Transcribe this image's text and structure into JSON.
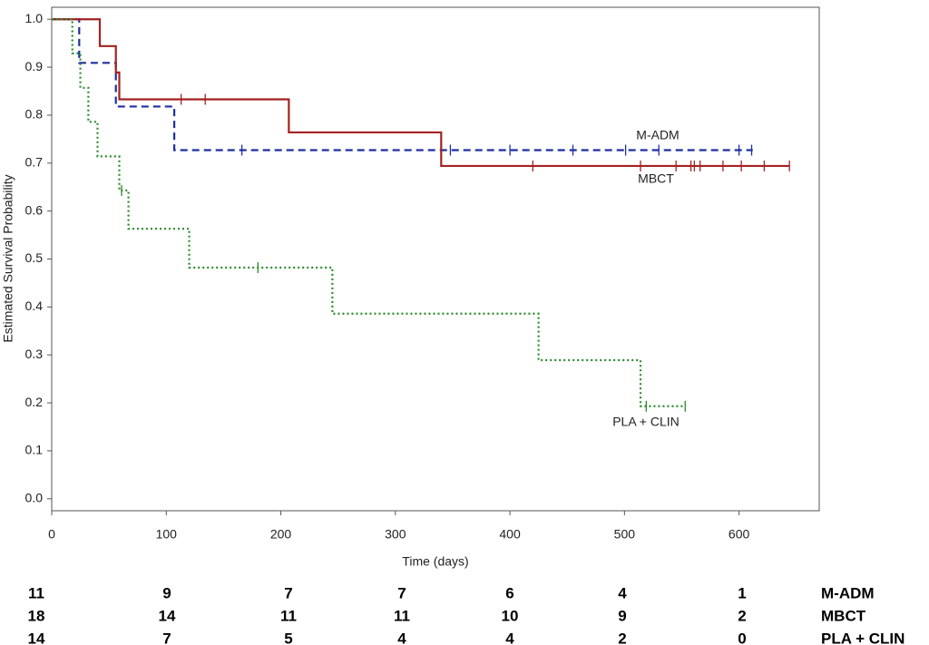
{
  "chart_data": {
    "type": "km",
    "x_label": "Time (days)",
    "y_label": "Estimated Survival Probability",
    "xlim": [
      0,
      670
    ],
    "ylim": [
      -0.025,
      1.025
    ],
    "xticks": [
      0,
      100,
      200,
      300,
      400,
      500,
      600
    ],
    "yticks": [
      {
        "value": 0,
        "label": "0.0"
      },
      {
        "value": 0.1,
        "label": "0.1"
      },
      {
        "value": 0.2,
        "label": "0.2"
      },
      {
        "value": 0.3,
        "label": "0.3"
      },
      {
        "value": 0.4,
        "label": "0.4"
      },
      {
        "value": 0.5,
        "label": "0.5"
      },
      {
        "value": 0.6,
        "label": "0.6"
      },
      {
        "value": 0.7,
        "label": "0.7"
      },
      {
        "value": 0.8,
        "label": "0.8"
      },
      {
        "value": 0.9,
        "label": "0.9"
      },
      {
        "value": 1,
        "label": "1.0"
      }
    ],
    "series": [
      {
        "name": "M-ADM",
        "color": "#1f2f9e",
        "dash": "8 5",
        "x": [
          0,
          24,
          56,
          107,
          612
        ],
        "values": [
          1,
          0.909,
          0.818,
          0.727,
          0.727
        ],
        "censored": {
          "x": [
            166,
            348,
            400,
            455,
            501,
            530,
            600,
            611
          ],
          "values": [
            0.727,
            0.727,
            0.727,
            0.727,
            0.727,
            0.727,
            0.727,
            0.727
          ]
        }
      },
      {
        "name": "MBCT",
        "color": "#a32222",
        "dash": "",
        "x": [
          0,
          42,
          56,
          59,
          207,
          340,
          644
        ],
        "values": [
          1,
          0.944,
          0.889,
          0.833,
          0.764,
          0.694,
          0.694
        ],
        "censored": {
          "x": [
            113,
            134,
            420,
            514,
            545,
            558,
            561,
            566,
            586,
            602,
            622,
            644
          ],
          "values": [
            0.833,
            0.833,
            0.694,
            0.694,
            0.694,
            0.694,
            0.694,
            0.694,
            0.694,
            0.694,
            0.694,
            0.694
          ]
        }
      },
      {
        "name": "PLA + CLIN",
        "color": "#2a8a2a",
        "dash": "2 3",
        "x": [
          0,
          18,
          25,
          32,
          40,
          59,
          67,
          120,
          245,
          425,
          514,
          553
        ],
        "values": [
          1,
          0.929,
          0.857,
          0.786,
          0.714,
          0.643,
          0.563,
          0.482,
          0.386,
          0.289,
          0.193,
          0.193
        ],
        "censored": {
          "x": [
            61,
            180,
            519,
            553
          ],
          "values": [
            0.643,
            0.482,
            0.193,
            0.193
          ]
        }
      }
    ],
    "risk_table": [
      {
        "name": "M-ADM",
        "counts": [
          11,
          9,
          7,
          7,
          6,
          4,
          1
        ]
      },
      {
        "name": "MBCT",
        "counts": [
          18,
          14,
          11,
          11,
          10,
          9,
          2
        ]
      },
      {
        "name": "PLA + CLIN",
        "counts": [
          14,
          7,
          5,
          4,
          4,
          2,
          0
        ]
      }
    ]
  }
}
